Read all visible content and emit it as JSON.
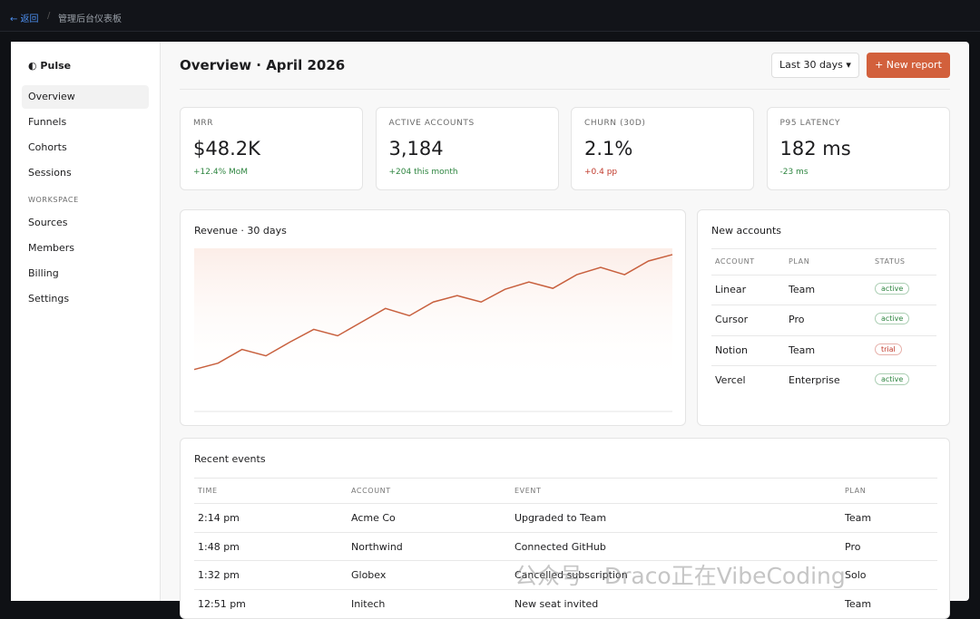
{
  "topbar": {
    "back": "← 返回",
    "separator": "/",
    "title": "管理后台仪表板"
  },
  "sidebar": {
    "brand": "◐ Pulse",
    "nav": [
      "Overview",
      "Funnels",
      "Cohorts",
      "Sessions"
    ],
    "section": "WORKSPACE",
    "workspace": [
      "Sources",
      "Members",
      "Billing",
      "Settings"
    ]
  },
  "header": {
    "title": "Overview · April 2026",
    "range": "Last 30 days ▾",
    "button": "+ New report"
  },
  "kpis": [
    {
      "label": "MRR",
      "value": "$48.2K",
      "delta": "+12.4% MoM",
      "delta_color": "#2e8540"
    },
    {
      "label": "ACTIVE ACCOUNTS",
      "value": "3,184",
      "delta": "+204 this month",
      "delta_color": "#2e8540"
    },
    {
      "label": "CHURN (30D)",
      "value": "2.1%",
      "delta": "+0.4 pp",
      "delta_color": "#c0392b"
    },
    {
      "label": "P95 LATENCY",
      "value": "182 ms",
      "delta": "-23 ms",
      "delta_color": "#2e8540"
    }
  ],
  "revenue_chart": {
    "type": "line",
    "title": "Revenue · 30 days",
    "color": "#c8603e",
    "values": [
      46,
      53,
      68,
      61,
      76,
      90,
      83,
      98,
      113,
      105,
      120,
      127,
      120,
      134,
      142,
      135,
      150,
      158,
      150,
      165,
      172
    ]
  },
  "new_accounts": {
    "title": "New accounts",
    "columns": [
      "ACCOUNT",
      "PLAN",
      "STATUS"
    ],
    "rows": [
      {
        "account": "Linear",
        "plan": "Team",
        "status": "active",
        "status_color": "#2e8540"
      },
      {
        "account": "Cursor",
        "plan": "Pro",
        "status": "active",
        "status_color": "#2e8540"
      },
      {
        "account": "Notion",
        "plan": "Team",
        "status": "trial",
        "status_color": "#c0392b"
      },
      {
        "account": "Vercel",
        "plan": "Enterprise",
        "status": "active",
        "status_color": "#2e8540"
      }
    ]
  },
  "recent_events": {
    "title": "Recent events",
    "columns": [
      "TIME",
      "ACCOUNT",
      "EVENT",
      "PLAN"
    ],
    "rows": [
      [
        "2:14 pm",
        "Acme Co",
        "Upgraded to Team",
        "Team"
      ],
      [
        "1:48 pm",
        "Northwind",
        "Connected GitHub",
        "Pro"
      ],
      [
        "1:32 pm",
        "Globex",
        "Cancelled subscription",
        "Solo"
      ],
      [
        "12:51 pm",
        "Initech",
        "New seat invited",
        "Team"
      ]
    ]
  },
  "watermark": "公众号 · Draco正在VibeCoding"
}
